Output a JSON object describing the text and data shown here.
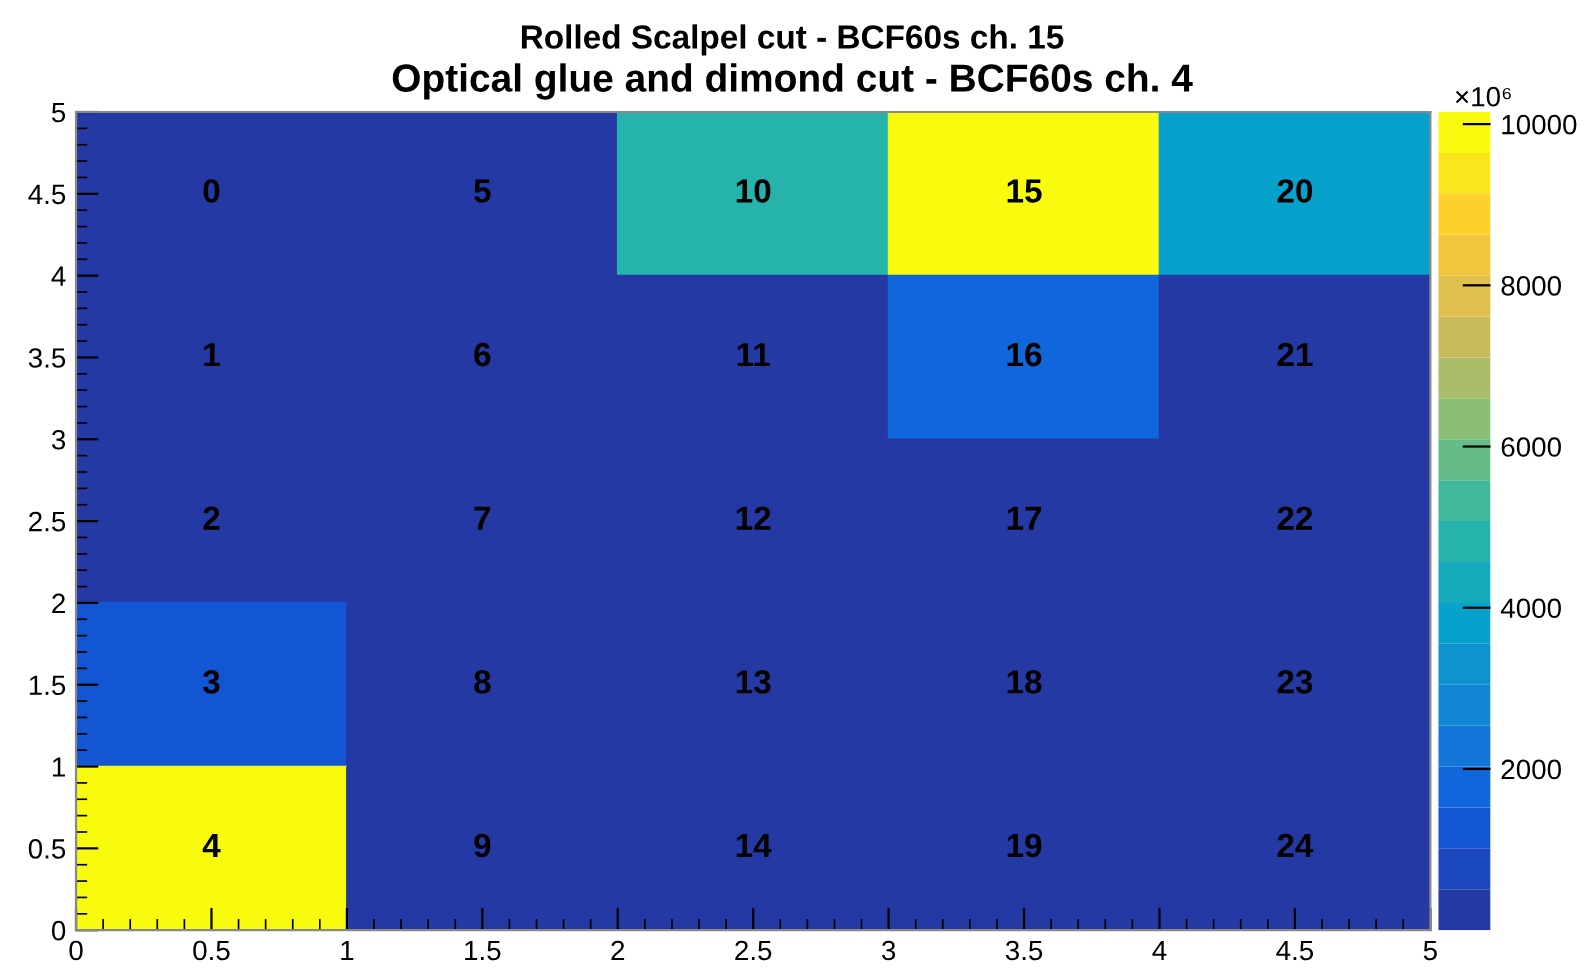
{
  "chart_data": {
    "type": "heatmap",
    "title": "Optical glue and dimond cut - BCF60s ch. 4",
    "subtitle": "Rolled Scalpel cut - BCF60s ch. 15",
    "x": [
      0.5,
      1.5,
      2.5,
      3.5,
      4.5
    ],
    "y": [
      4.5,
      3.5,
      2.5,
      1.5,
      0.5
    ],
    "cells": [
      [
        100,
        100,
        4800,
        10150,
        3700
      ],
      [
        100,
        100,
        100,
        1700,
        100
      ],
      [
        100,
        100,
        100,
        100,
        100
      ],
      [
        1200,
        100,
        100,
        100,
        100
      ],
      [
        10150,
        100,
        100,
        100,
        100
      ]
    ],
    "annotations": [
      "0",
      "5",
      "10",
      "15",
      "20",
      "1",
      "6",
      "11",
      "16",
      "21",
      "2",
      "7",
      "12",
      "17",
      "22",
      "3",
      "8",
      "13",
      "18",
      "23",
      "4",
      "9",
      "14",
      "19",
      "24"
    ],
    "xlim": [
      0,
      5
    ],
    "ylim": [
      0,
      5
    ],
    "xticks": [
      0,
      0.5,
      1,
      1.5,
      2,
      2.5,
      3,
      3.5,
      4,
      4.5,
      5
    ],
    "yticks": [
      0,
      0.5,
      1,
      1.5,
      2,
      2.5,
      3,
      3.5,
      4,
      4.5,
      5
    ],
    "clim": [
      0,
      10150
    ],
    "cticks": [
      2000,
      4000,
      6000,
      8000,
      10000
    ],
    "clabel": "×10⁶",
    "grid": false
  }
}
